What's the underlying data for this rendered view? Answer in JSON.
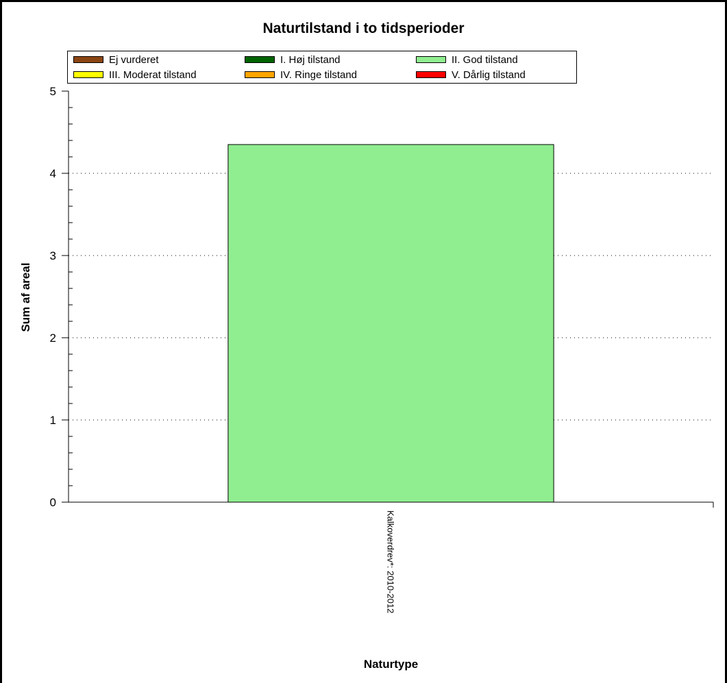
{
  "chart_data": {
    "type": "bar",
    "title": "Naturtilstand i to tidsperioder",
    "xlabel": "Naturtype",
    "ylabel": "Sum af areal",
    "categories": [
      "Kalkoverdrev*: 2010-2012"
    ],
    "series": [
      {
        "name": "II. God tilstand",
        "values": [
          4.35
        ],
        "color": "#90ee90"
      }
    ],
    "ylim": [
      0,
      5
    ],
    "yticks": [
      "0",
      "1",
      "2",
      "3",
      "4",
      "5"
    ],
    "grid": true,
    "legend_position": "top",
    "legend": [
      {
        "label": "Ej vurderet",
        "color": "#8b4513"
      },
      {
        "label": "I. Høj tilstand",
        "color": "#006400"
      },
      {
        "label": "II. God tilstand",
        "color": "#90ee90"
      },
      {
        "label": "III. Moderat tilstand",
        "color": "#ffff00"
      },
      {
        "label": "IV. Ringe tilstand",
        "color": "#ffa500"
      },
      {
        "label": "V. Dårlig tilstand",
        "color": "#ff0000"
      }
    ]
  }
}
